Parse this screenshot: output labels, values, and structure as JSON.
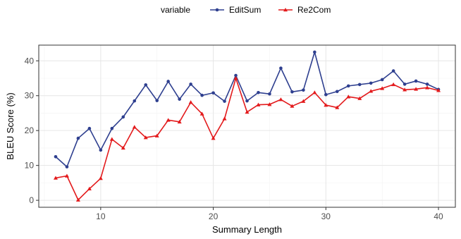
{
  "chart_data": {
    "type": "line",
    "title": "",
    "xlabel": "Summary Length",
    "ylabel": "BLEU Score (%)",
    "xlim": [
      4.5,
      41.5
    ],
    "ylim": [
      -2,
      44.5
    ],
    "xticks": [
      10,
      20,
      30,
      40
    ],
    "yticks": [
      0,
      10,
      20,
      30,
      40
    ],
    "grid": true,
    "legend": {
      "title": "variable",
      "position": "top"
    },
    "x": [
      6,
      7,
      8,
      9,
      10,
      11,
      12,
      13,
      14,
      15,
      16,
      17,
      18,
      19,
      20,
      21,
      22,
      23,
      24,
      25,
      26,
      27,
      28,
      29,
      30,
      31,
      32,
      33,
      34,
      35,
      36,
      37,
      38,
      39,
      40
    ],
    "series": [
      {
        "name": "EditSum",
        "color": "#2e3f8f",
        "marker": "circle",
        "values": [
          12.5,
          9.6,
          17.8,
          20.6,
          14.4,
          20.6,
          23.9,
          28.5,
          33.1,
          28.6,
          34.1,
          29.0,
          33.3,
          30.1,
          30.8,
          28.4,
          35.8,
          28.5,
          30.9,
          30.5,
          37.9,
          31.1,
          31.6,
          42.5,
          30.3,
          31.2,
          32.8,
          33.2,
          33.6,
          34.6,
          37.1,
          33.3,
          34.2,
          33.3,
          31.8
        ]
      },
      {
        "name": "Re2Com",
        "color": "#e31a1c",
        "marker": "triangle",
        "values": [
          6.4,
          7.0,
          0.1,
          3.3,
          6.3,
          17.5,
          15.0,
          21.0,
          18.0,
          18.5,
          23.0,
          22.5,
          28.1,
          24.8,
          17.8,
          23.4,
          35.0,
          25.3,
          27.4,
          27.5,
          28.9,
          27.0,
          28.4,
          30.9,
          27.3,
          26.6,
          29.7,
          29.2,
          31.3,
          32.1,
          33.2,
          31.7,
          31.9,
          32.3,
          31.5
        ]
      }
    ]
  }
}
